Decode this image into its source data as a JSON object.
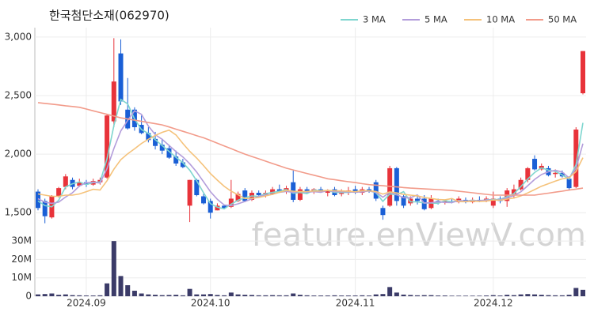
{
  "chart_data": {
    "type": "candlestick",
    "title": "한국첨단소재(062970)",
    "watermark": "feature.enViewV.com",
    "categories": [
      null,
      null,
      null,
      null,
      null,
      null,
      null,
      "2024.09",
      null,
      null,
      null,
      null,
      null,
      null,
      null,
      null,
      null,
      null,
      null,
      null,
      null,
      null,
      null,
      null,
      null,
      "2024.10",
      null,
      null,
      null,
      null,
      null,
      null,
      null,
      null,
      null,
      null,
      null,
      null,
      null,
      null,
      null,
      null,
      null,
      null,
      null,
      null,
      "2024.11",
      null,
      null,
      null,
      null,
      null,
      null,
      null,
      null,
      null,
      null,
      null,
      null,
      null,
      null,
      null,
      null,
      null,
      null,
      null,
      "2024.12",
      null,
      null,
      null,
      null,
      null,
      null,
      null,
      null,
      null,
      null,
      null,
      null,
      null
    ],
    "open": [
      1680,
      1600,
      1460,
      1640,
      1720,
      1780,
      1730,
      1760,
      1740,
      1760,
      1800,
      2280,
      2860,
      2380,
      2380,
      2250,
      2180,
      2130,
      2080,
      2050,
      1980,
      1930,
      1560,
      1780,
      1640,
      1600,
      1520,
      1560,
      1550,
      1600,
      1690,
      1610,
      1670,
      1650,
      1660,
      1700,
      1680,
      1760,
      1610,
      1700,
      1680,
      1700,
      1670,
      1700,
      1660,
      1680,
      1700,
      1670,
      1700,
      1760,
      1540,
      1560,
      1880,
      1640,
      1580,
      1620,
      1620,
      1540,
      1600,
      1590,
      1600,
      1590,
      1610,
      1590,
      1610,
      1600,
      1560,
      1620,
      1600,
      1660,
      1700,
      1780,
      1960,
      1870,
      1880,
      1830,
      1840,
      1790,
      1720,
      2520
    ],
    "high": [
      1700,
      1620,
      1650,
      1720,
      1830,
      1800,
      1790,
      1780,
      1790,
      1800,
      2340,
      2990,
      2980,
      2650,
      2400,
      2330,
      2230,
      2190,
      2130,
      2080,
      2030,
      1960,
      1780,
      1790,
      1660,
      1620,
      1580,
      1570,
      1780,
      1680,
      1710,
      1690,
      1690,
      1690,
      1720,
      1740,
      1730,
      1860,
      1720,
      1720,
      1710,
      1720,
      1700,
      1720,
      1700,
      1720,
      1730,
      1720,
      1720,
      1780,
      1560,
      1900,
      1890,
      1660,
      1640,
      1640,
      1650,
      1650,
      1620,
      1610,
      1620,
      1640,
      1630,
      1630,
      1640,
      1640,
      1680,
      1640,
      1710,
      1740,
      1800,
      1890,
      1990,
      1920,
      1900,
      1870,
      1860,
      1810,
      2230,
      2880
    ],
    "low": [
      1520,
      1410,
      1450,
      1630,
      1700,
      1700,
      1720,
      1720,
      1730,
      1740,
      1790,
      2230,
      2420,
      2210,
      2200,
      2170,
      2100,
      2040,
      2000,
      1960,
      1900,
      1880,
      1420,
      1640,
      1570,
      1450,
      1520,
      1530,
      1540,
      1590,
      1590,
      1600,
      1640,
      1630,
      1650,
      1670,
      1660,
      1590,
      1600,
      1660,
      1660,
      1670,
      1640,
      1640,
      1640,
      1650,
      1660,
      1650,
      1670,
      1600,
      1440,
      1550,
      1560,
      1540,
      1560,
      1570,
      1520,
      1530,
      1570,
      1570,
      1580,
      1580,
      1580,
      1580,
      1590,
      1590,
      1540,
      1580,
      1550,
      1620,
      1690,
      1760,
      1860,
      1860,
      1810,
      1800,
      1800,
      1690,
      1710,
      2510
    ],
    "close": [
      1540,
      1470,
      1640,
      1710,
      1810,
      1720,
      1760,
      1740,
      1770,
      1780,
      2330,
      2620,
      2450,
      2220,
      2230,
      2180,
      2120,
      2070,
      2030,
      1970,
      1920,
      1890,
      1780,
      1650,
      1580,
      1500,
      1560,
      1540,
      1620,
      1660,
      1600,
      1670,
      1650,
      1670,
      1700,
      1680,
      1710,
      1610,
      1700,
      1680,
      1700,
      1680,
      1690,
      1650,
      1680,
      1690,
      1670,
      1700,
      1690,
      1620,
      1480,
      1880,
      1600,
      1560,
      1620,
      1600,
      1530,
      1620,
      1590,
      1600,
      1590,
      1620,
      1590,
      1610,
      1600,
      1620,
      1620,
      1600,
      1690,
      1700,
      1780,
      1880,
      1870,
      1900,
      1820,
      1840,
      1810,
      1710,
      2210,
      2880
    ],
    "volume": [
      1000000,
      1200000,
      1500000,
      800000,
      1000000,
      600000,
      500000,
      400000,
      400000,
      500000,
      7000000,
      30000000,
      11000000,
      6000000,
      3000000,
      1500000,
      1000000,
      800000,
      600000,
      700000,
      800000,
      500000,
      4000000,
      1000000,
      1000000,
      1200000,
      700000,
      500000,
      2000000,
      1000000,
      800000,
      700000,
      500000,
      500000,
      600000,
      500000,
      500000,
      1500000,
      800000,
      500000,
      400000,
      400000,
      400000,
      500000,
      400000,
      400000,
      400000,
      500000,
      400000,
      1000000,
      1200000,
      5000000,
      2000000,
      900000,
      700000,
      500000,
      600000,
      600000,
      400000,
      400000,
      300000,
      300000,
      300000,
      300000,
      300000,
      400000,
      600000,
      400000,
      800000,
      600000,
      1000000,
      1200000,
      1000000,
      800000,
      600000,
      500000,
      500000,
      800000,
      4500000,
      3500000
    ],
    "up_color": "#e8333a",
    "down_color": "#1a5fd6",
    "volume_color": "#3b3b68",
    "series": [
      {
        "name": "3 MA",
        "color": "#7fd6cf",
        "values": [
          1600,
          1560,
          1550,
          1607,
          1720,
          1747,
          1763,
          1740,
          1757,
          1763,
          1960,
          2243,
          2467,
          2430,
          2300,
          2210,
          2177,
          2123,
          2073,
          2023,
          1973,
          1927,
          1863,
          1773,
          1670,
          1577,
          1547,
          1533,
          1573,
          1607,
          1627,
          1643,
          1640,
          1663,
          1673,
          1683,
          1697,
          1667,
          1673,
          1663,
          1693,
          1687,
          1690,
          1673,
          1673,
          1673,
          1680,
          1687,
          1687,
          1670,
          1597,
          1660,
          1653,
          1680,
          1593,
          1593,
          1583,
          1583,
          1580,
          1603,
          1593,
          1603,
          1600,
          1607,
          1600,
          1610,
          1613,
          1613,
          1637,
          1663,
          1723,
          1787,
          1843,
          1883,
          1863,
          1853,
          1823,
          1787,
          1910,
          2267
        ]
      },
      {
        "name": "5 MA",
        "color": "#b39ddb",
        "values": [
          1620,
          1590,
          1580,
          1590,
          1634,
          1670,
          1728,
          1756,
          1760,
          1754,
          1876,
          2048,
          2198,
          2288,
          2370,
          2340,
          2240,
          2166,
          2126,
          2074,
          2022,
          1976,
          1918,
          1848,
          1764,
          1680,
          1614,
          1566,
          1560,
          1576,
          1596,
          1618,
          1640,
          1650,
          1658,
          1674,
          1682,
          1674,
          1680,
          1676,
          1680,
          1674,
          1690,
          1680,
          1680,
          1678,
          1676,
          1678,
          1686,
          1674,
          1632,
          1674,
          1654,
          1628,
          1628,
          1652,
          1582,
          1586,
          1592,
          1588,
          1586,
          1604,
          1600,
          1602,
          1602,
          1608,
          1608,
          1610,
          1628,
          1646,
          1678,
          1730,
          1784,
          1826,
          1850,
          1862,
          1848,
          1796,
          1878,
          2090
        ]
      },
      {
        "name": "10 MA",
        "color": "#f5c27a",
        "values": [
          1660,
          1650,
          1640,
          1640,
          1650,
          1650,
          1660,
          1680,
          1700,
          1694,
          1773,
          1871,
          1952,
          2003,
          2045,
          2091,
          2127,
          2160,
          2186,
          2205,
          2164,
          2091,
          2024,
          1967,
          1902,
          1834,
          1778,
          1725,
          1684,
          1653,
          1621,
          1623,
          1630,
          1643,
          1657,
          1675,
          1690,
          1684,
          1680,
          1682,
          1685,
          1686,
          1690,
          1688,
          1686,
          1683,
          1679,
          1688,
          1687,
          1681,
          1659,
          1678,
          1669,
          1656,
          1650,
          1644,
          1630,
          1622,
          1612,
          1610,
          1621,
          1595,
          1594,
          1599,
          1597,
          1599,
          1608,
          1606,
          1616,
          1626,
          1643,
          1669,
          1697,
          1726,
          1748,
          1770,
          1789,
          1800,
          1852,
          1970
        ]
      },
      {
        "name": "50 MA",
        "color": "#f29b8a",
        "values": [
          2440,
          2433,
          2427,
          2420,
          2413,
          2407,
          2400,
          2385,
          2370,
          2355,
          2340,
          2325,
          2310,
          2300,
          2290,
          2280,
          2270,
          2260,
          2250,
          2232,
          2213,
          2195,
          2177,
          2158,
          2140,
          2117,
          2093,
          2070,
          2047,
          2023,
          2000,
          1980,
          1960,
          1940,
          1920,
          1900,
          1880,
          1865,
          1850,
          1835,
          1820,
          1805,
          1790,
          1782,
          1773,
          1765,
          1757,
          1748,
          1740,
          1735,
          1730,
          1725,
          1720,
          1715,
          1710,
          1707,
          1703,
          1700,
          1697,
          1693,
          1690,
          1683,
          1677,
          1670,
          1663,
          1657,
          1650,
          1650,
          1650,
          1650,
          1650,
          1650,
          1650,
          1659,
          1667,
          1676,
          1684,
          1693,
          1701,
          1710
        ]
      }
    ],
    "ylim": [
      1360,
      3080
    ],
    "yticks": [
      {
        "value": 1500,
        "label": "1,500"
      },
      {
        "value": 2000,
        "label": "2,000"
      },
      {
        "value": 2500,
        "label": "2,500"
      },
      {
        "value": 3000,
        "label": "3,000"
      }
    ],
    "volume_ylim": [
      0,
      33500000
    ],
    "volume_yticks": [
      0,
      {
        "value": 10000000,
        "label": "10M"
      },
      {
        "value": 20000000,
        "label": "20M"
      },
      {
        "value": 30000000,
        "label": "30M"
      }
    ],
    "grid": true
  }
}
